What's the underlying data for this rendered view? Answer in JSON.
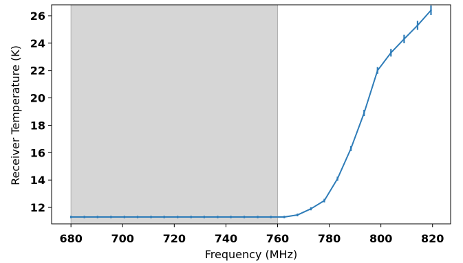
{
  "chart_data": {
    "type": "line",
    "title": "",
    "xlabel": "Frequency (MHz)",
    "ylabel": "Receiver Temperature (K)",
    "xlim": [
      672.5,
      827.0
    ],
    "ylim": [
      10.8,
      26.8
    ],
    "xticks": [
      680,
      700,
      720,
      740,
      760,
      780,
      800,
      820
    ],
    "yticks": [
      12,
      14,
      16,
      18,
      20,
      22,
      24,
      26
    ],
    "shaded_band": {
      "x0": 680,
      "x1": 760,
      "color": "#d6d6d6"
    },
    "grid": false,
    "legend": "none",
    "series": [
      {
        "color": "#2e7cb8",
        "x": [
          680,
          685.2,
          690.3,
          695.5,
          700.7,
          705.8,
          711.0,
          716.1,
          721.3,
          726.5,
          731.6,
          736.8,
          741.9,
          747.1,
          752.3,
          757.4,
          762.6,
          767.7,
          772.9,
          778.1,
          783.2,
          788.4,
          793.5,
          798.7,
          803.9,
          809.0,
          814.2,
          819.4
        ],
        "y": [
          11.3,
          11.3,
          11.3,
          11.3,
          11.3,
          11.3,
          11.3,
          11.3,
          11.3,
          11.3,
          11.3,
          11.3,
          11.3,
          11.3,
          11.3,
          11.3,
          11.3,
          11.45,
          11.9,
          12.5,
          14.1,
          16.3,
          18.9,
          22.0,
          23.3,
          24.3,
          25.3,
          26.4
        ],
        "err": [
          0.06,
          0.06,
          0.06,
          0.06,
          0.06,
          0.06,
          0.06,
          0.06,
          0.06,
          0.06,
          0.06,
          0.06,
          0.06,
          0.06,
          0.06,
          0.06,
          0.06,
          0.07,
          0.08,
          0.1,
          0.12,
          0.15,
          0.2,
          0.22,
          0.25,
          0.28,
          0.3,
          0.32
        ]
      }
    ]
  }
}
